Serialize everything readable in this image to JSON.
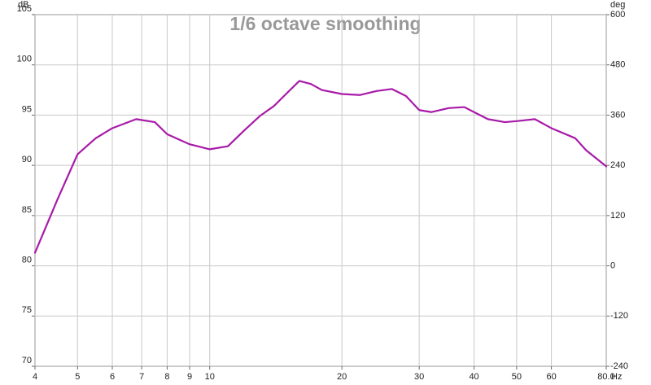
{
  "chart_data": {
    "type": "line",
    "title": "1/6 octave smoothing",
    "y_label": "dB",
    "y2_label": "deg",
    "x_label": "Hz",
    "x": [
      4,
      4.5,
      5,
      5.5,
      6,
      6.8,
      7.5,
      8,
      9,
      10,
      11,
      12,
      13,
      14,
      15,
      16,
      17,
      18,
      20,
      22,
      24,
      26,
      28,
      30,
      32,
      35,
      38,
      40,
      43,
      47,
      50,
      55,
      60,
      68,
      72,
      80
    ],
    "values": [
      81.3,
      86.6,
      91.1,
      92.7,
      93.7,
      94.6,
      94.3,
      93.1,
      92.1,
      91.6,
      91.9,
      93.5,
      94.9,
      95.9,
      97.2,
      98.4,
      98.1,
      97.5,
      97.1,
      97.0,
      97.4,
      97.6,
      96.9,
      95.5,
      95.3,
      95.7,
      95.8,
      95.3,
      94.6,
      94.3,
      94.4,
      94.6,
      93.7,
      92.7,
      91.5,
      89.9
    ],
    "color": "#a81aa8",
    "xscale": "log",
    "xlim": [
      4,
      80
    ],
    "xticks": [
      4,
      5,
      6,
      7,
      8,
      9,
      10,
      20,
      30,
      40,
      50,
      60,
      {
        "value": 80,
        "label": "80.0"
      }
    ],
    "ylim": [
      70,
      105
    ],
    "yticks": [
      70,
      75,
      80,
      85,
      90,
      95,
      100,
      105
    ],
    "y2lim": [
      -240,
      600
    ],
    "y2ticks": [
      -240,
      -120,
      0,
      120,
      240,
      360,
      480,
      600
    ],
    "grid": true
  }
}
